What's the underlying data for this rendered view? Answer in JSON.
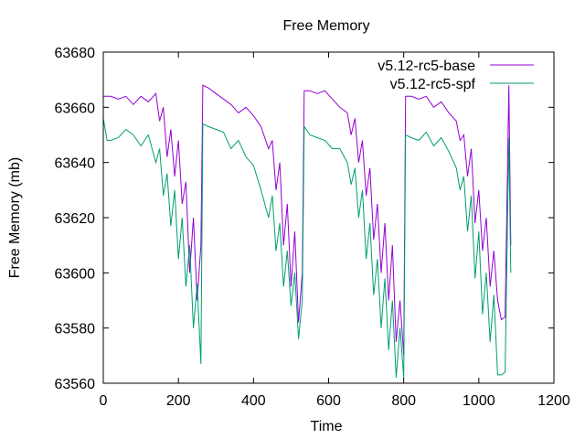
{
  "chart_data": {
    "type": "line",
    "title": "Free Memory",
    "xlabel": "Time",
    "ylabel": "Free Memory (mb)",
    "xlim": [
      0,
      1200
    ],
    "ylim": [
      63560,
      63680
    ],
    "xticks": [
      0,
      200,
      400,
      600,
      800,
      1000,
      1200
    ],
    "yticks": [
      63560,
      63580,
      63600,
      63620,
      63640,
      63660,
      63680
    ],
    "legend_position": "top-right",
    "grid": false,
    "series": [
      {
        "name": "v5.12-rc5-base",
        "color": "#9400d3",
        "x": [
          0,
          20,
          40,
          60,
          80,
          100,
          120,
          140,
          150,
          160,
          170,
          180,
          190,
          200,
          210,
          220,
          230,
          240,
          250,
          260,
          265,
          280,
          300,
          320,
          340,
          360,
          380,
          400,
          420,
          440,
          450,
          460,
          470,
          480,
          490,
          500,
          510,
          520,
          530,
          535,
          550,
          570,
          590,
          610,
          630,
          650,
          660,
          670,
          680,
          690,
          700,
          710,
          720,
          730,
          740,
          750,
          760,
          770,
          780,
          790,
          800,
          805,
          820,
          840,
          860,
          880,
          900,
          920,
          940,
          950,
          960,
          970,
          980,
          990,
          1000,
          1010,
          1020,
          1030,
          1040,
          1050,
          1060,
          1070,
          1080,
          1085
        ],
        "values": [
          63664,
          63664,
          63663,
          63664,
          63661,
          63664,
          63662,
          63665,
          63655,
          63660,
          63642,
          63652,
          63635,
          63648,
          63625,
          63633,
          63600,
          63620,
          63590,
          63610,
          63668,
          63667,
          63665,
          63663,
          63661,
          63658,
          63660,
          63657,
          63653,
          63645,
          63648,
          63630,
          63640,
          63610,
          63625,
          63595,
          63615,
          63582,
          63600,
          63666,
          63666,
          63665,
          63666,
          63663,
          63660,
          63658,
          63650,
          63656,
          63640,
          63648,
          63628,
          63638,
          63612,
          63625,
          63600,
          63618,
          63590,
          63610,
          63575,
          63590,
          63570,
          63664,
          63664,
          63663,
          63664,
          63660,
          63662,
          63658,
          63655,
          63648,
          63650,
          63635,
          63645,
          63618,
          63630,
          63608,
          63620,
          63595,
          63608,
          63590,
          63583,
          63584,
          63668,
          63610
        ]
      },
      {
        "name": "v5.12-rc5-spf",
        "color": "#009e73",
        "x": [
          0,
          10,
          20,
          40,
          60,
          80,
          100,
          120,
          140,
          150,
          160,
          170,
          180,
          190,
          200,
          210,
          220,
          230,
          240,
          250,
          260,
          265,
          280,
          300,
          320,
          340,
          360,
          380,
          400,
          420,
          440,
          450,
          460,
          470,
          480,
          490,
          500,
          510,
          520,
          530,
          535,
          550,
          570,
          590,
          610,
          630,
          650,
          660,
          670,
          680,
          690,
          700,
          710,
          720,
          730,
          740,
          750,
          760,
          770,
          780,
          790,
          800,
          805,
          820,
          840,
          860,
          880,
          900,
          920,
          940,
          950,
          960,
          970,
          980,
          990,
          1000,
          1010,
          1020,
          1030,
          1040,
          1050,
          1060,
          1070,
          1080,
          1085
        ],
        "values": [
          63656,
          63648,
          63648,
          63649,
          63652,
          63650,
          63646,
          63650,
          63640,
          63645,
          63628,
          63636,
          63617,
          63630,
          63605,
          63620,
          63595,
          63610,
          63580,
          63596,
          63567,
          63654,
          63653,
          63652,
          63651,
          63645,
          63648,
          63642,
          63639,
          63630,
          63620,
          63628,
          63608,
          63618,
          63595,
          63608,
          63588,
          63600,
          63576,
          63590,
          63653,
          63650,
          63649,
          63648,
          63645,
          63645,
          63640,
          63632,
          63638,
          63620,
          63630,
          63605,
          63618,
          63592,
          63605,
          63580,
          63598,
          63572,
          63590,
          63562,
          63580,
          63562,
          63650,
          63649,
          63648,
          63651,
          63646,
          63649,
          63644,
          63638,
          63630,
          63635,
          63615,
          63628,
          63598,
          63615,
          63585,
          63600,
          63575,
          63592,
          63563,
          63563,
          63564,
          63649,
          63600
        ]
      }
    ]
  }
}
